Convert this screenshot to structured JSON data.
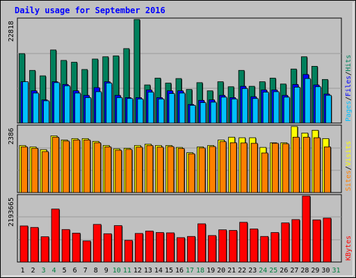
{
  "title": "Daily usage for September 2016",
  "colors": {
    "background": "#c0c0c0",
    "plot_bg": "#c0c0c0",
    "grid": "#9a9a9a",
    "hits": "#00805c",
    "files": "#0000ff",
    "pages": "#00c0ff",
    "visits": "#ffff00",
    "sites": "#ff8000",
    "kbytes": "#ff0000",
    "title": "#0000ff",
    "weekend": "#008040"
  },
  "chart_data": [
    {
      "type": "bar",
      "panel": "hits-files-pages",
      "title": "Daily usage for September 2016",
      "ylabel_parts": [
        "Pages",
        "/",
        "Files",
        "/",
        "Hits"
      ],
      "ymax_label": "22818",
      "ylim": [
        0,
        22818
      ],
      "categories": [
        "1",
        "2",
        "3",
        "4",
        "5",
        "6",
        "7",
        "8",
        "9",
        "10",
        "11",
        "12",
        "13",
        "14",
        "15",
        "16",
        "17",
        "18",
        "19",
        "20",
        "21",
        "22",
        "23",
        "24",
        "25",
        "26",
        "27",
        "28",
        "29",
        "30",
        "31"
      ],
      "weekend_days": [
        "3",
        "4",
        "10",
        "11",
        "17",
        "18",
        "24",
        "25",
        "31"
      ],
      "series": [
        {
          "name": "Hits",
          "values": [
            15300,
            11600,
            10400,
            16100,
            13800,
            13400,
            11800,
            14100,
            14600,
            14800,
            16400,
            22818,
            8400,
            9900,
            8800,
            9800,
            7400,
            8900,
            7100,
            9100,
            8000,
            11600,
            8100,
            9100,
            9900,
            8600,
            11900,
            14600,
            12500,
            9600,
            null
          ]
        },
        {
          "name": "Files",
          "values": [
            9100,
            7100,
            5100,
            9100,
            8500,
            7100,
            6100,
            7800,
            9100,
            6100,
            5600,
            5600,
            7300,
            5600,
            7100,
            7100,
            4100,
            5000,
            5100,
            6100,
            5600,
            8100,
            5800,
            7300,
            7300,
            6100,
            8500,
            10700,
            8400,
            6400,
            null
          ]
        },
        {
          "name": "Pages",
          "values": [
            9100,
            6600,
            4900,
            8900,
            8200,
            6600,
            5600,
            6900,
            8800,
            5600,
            5400,
            5300,
            6800,
            5300,
            6500,
            6600,
            3900,
            4500,
            4600,
            5700,
            5300,
            7600,
            5400,
            6800,
            6900,
            5700,
            7900,
            9800,
            8000,
            6100,
            null
          ]
        }
      ]
    },
    {
      "type": "bar",
      "panel": "sites-visits",
      "ylabel_parts": [
        "Sites",
        "/",
        "Visits"
      ],
      "ymax_label": "2386",
      "ylim": [
        0,
        2386
      ],
      "categories": [
        "1",
        "2",
        "3",
        "4",
        "5",
        "6",
        "7",
        "8",
        "9",
        "10",
        "11",
        "12",
        "13",
        "14",
        "15",
        "16",
        "17",
        "18",
        "19",
        "20",
        "21",
        "22",
        "23",
        "24",
        "25",
        "26",
        "27",
        "28",
        "29",
        "30",
        "31"
      ],
      "series": [
        {
          "name": "Visits",
          "values": [
            1700,
            1650,
            1550,
            2050,
            1900,
            1950,
            1950,
            1850,
            1700,
            1580,
            1600,
            1700,
            1750,
            1700,
            1700,
            1630,
            1440,
            1650,
            1700,
            1900,
            2000,
            1980,
            1980,
            1630,
            1800,
            1800,
            2386,
            2150,
            2250,
            1950,
            null
          ]
        },
        {
          "name": "Sites",
          "values": [
            1650,
            1600,
            1480,
            2000,
            1860,
            1900,
            1900,
            1800,
            1650,
            1530,
            1560,
            1640,
            1700,
            1640,
            1660,
            1590,
            1400,
            1610,
            1660,
            1840,
            1800,
            1790,
            1780,
            1430,
            1780,
            1760,
            2000,
            2000,
            1980,
            1650,
            null
          ]
        }
      ]
    },
    {
      "type": "bar",
      "panel": "kbytes",
      "ylabel_parts": [
        "KBytes"
      ],
      "ymax_label": "2193665",
      "ylim": [
        0,
        2193665
      ],
      "categories": [
        "1",
        "2",
        "3",
        "4",
        "5",
        "6",
        "7",
        "8",
        "9",
        "10",
        "11",
        "12",
        "13",
        "14",
        "15",
        "16",
        "17",
        "18",
        "19",
        "20",
        "21",
        "22",
        "23",
        "24",
        "25",
        "26",
        "27",
        "28",
        "29",
        "30",
        "31"
      ],
      "series": [
        {
          "name": "KBytes",
          "values": [
            1200000,
            1150000,
            840000,
            1760000,
            1080000,
            960000,
            700000,
            1250000,
            940000,
            1210000,
            720000,
            950000,
            1030000,
            980000,
            970000,
            810000,
            850000,
            1270000,
            880000,
            1070000,
            1050000,
            1320000,
            1100000,
            850000,
            980000,
            1300000,
            1410000,
            2193665,
            1400000,
            1460000,
            null
          ]
        }
      ]
    }
  ]
}
